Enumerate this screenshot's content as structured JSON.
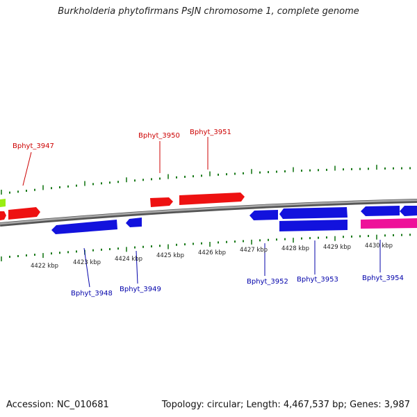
{
  "title": "Burkholderia phytofirmans PsJN chromosome 1, complete genome",
  "footer": {
    "accession": "Accession: NC_010681",
    "summary": "Topology: circular; Length: 4,467,537 bp; Genes: 3,987"
  },
  "colors": {
    "forward": "#ee1111",
    "reverse": "#1212dd",
    "pink": "#ee1199",
    "green": "#99ee11",
    "tick": "#1a7a1a",
    "backbone": "#888888"
  },
  "tick_labels": [
    "4422 kbp",
    "4423 kbp",
    "4424 kbp",
    "4425 kbp",
    "4426 kbp",
    "4427 kbp",
    "4428 kbp",
    "4429 kbp",
    "4430 kbp"
  ],
  "gene_labels": {
    "forward": [
      "Bphyt_3947",
      "Bphyt_3950",
      "Bphyt_3951"
    ],
    "reverse": [
      "Bphyt_3948",
      "Bphyt_3949",
      "Bphyt_3952",
      "Bphyt_3953",
      "Bphyt_3954"
    ]
  }
}
